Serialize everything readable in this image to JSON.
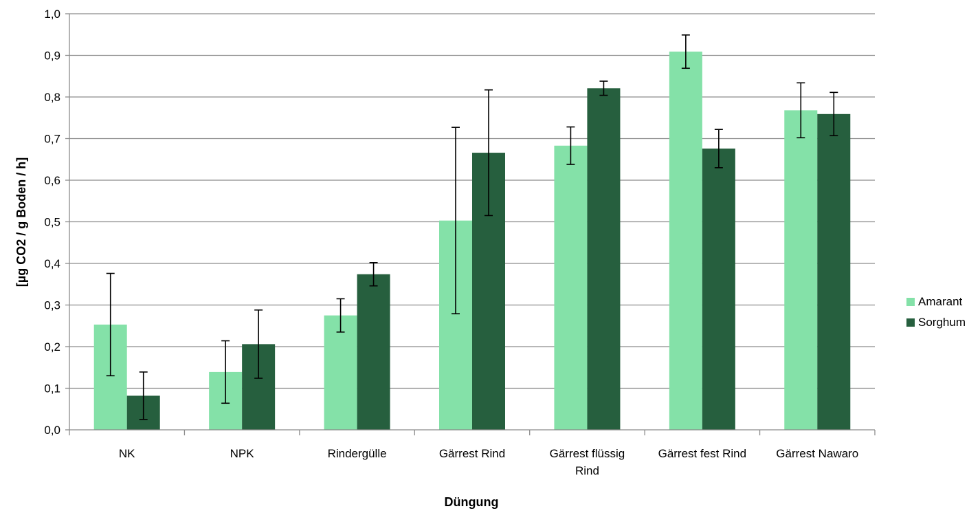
{
  "chart_data": {
    "type": "bar",
    "title": "",
    "xlabel": "Düngung",
    "ylabel": "[µg CO2 / g Boden / h]",
    "ylim": [
      0,
      1.0
    ],
    "yticks": [
      "0,0",
      "0,1",
      "0,2",
      "0,3",
      "0,4",
      "0,5",
      "0,6",
      "0,7",
      "0,8",
      "0,9",
      "1,0"
    ],
    "grid": true,
    "legend_position": "right",
    "categories": [
      [
        "NK"
      ],
      [
        "NPK"
      ],
      [
        "Rindergülle"
      ],
      [
        "Gärrest Rind"
      ],
      [
        "Gärrest flüssig",
        "Rind"
      ],
      [
        "Gärrest fest Rind"
      ],
      [
        "Gärrest Nawaro"
      ]
    ],
    "series": [
      {
        "name": "Amarant",
        "color": "#84e1a8",
        "values": [
          0.253,
          0.139,
          0.275,
          0.503,
          0.683,
          0.909,
          0.768
        ],
        "error": [
          0.123,
          0.075,
          0.04,
          0.224,
          0.045,
          0.04,
          0.066
        ]
      },
      {
        "name": "Sorghum",
        "color": "#265f3e",
        "values": [
          0.082,
          0.206,
          0.374,
          0.666,
          0.821,
          0.676,
          0.759
        ],
        "error": [
          0.057,
          0.082,
          0.028,
          0.151,
          0.017,
          0.046,
          0.052
        ]
      }
    ]
  }
}
